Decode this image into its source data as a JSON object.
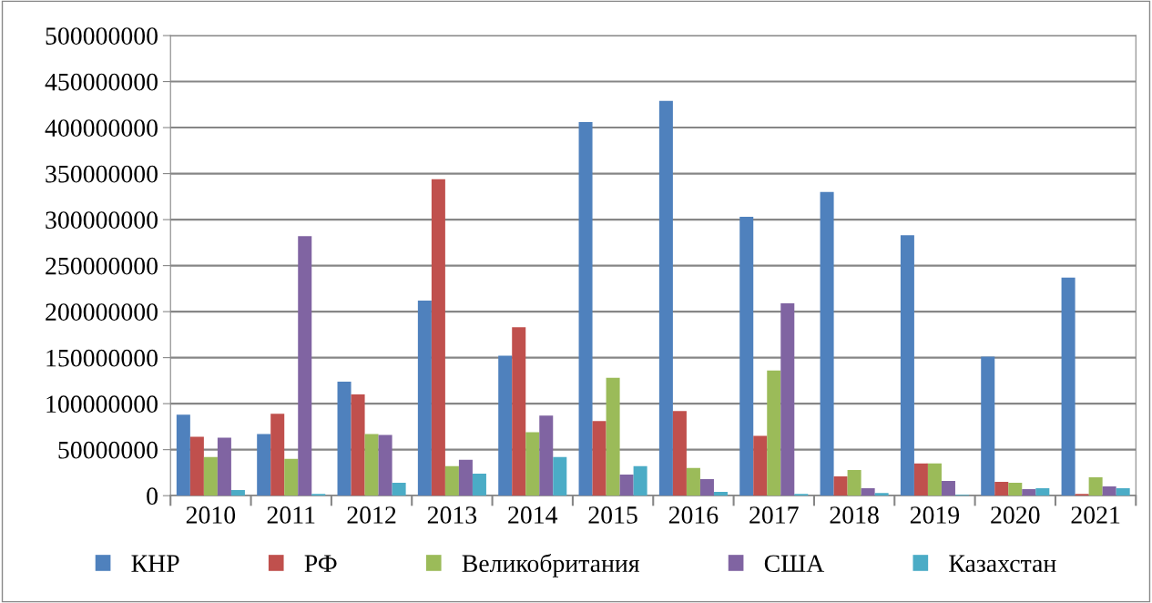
{
  "chart_data": {
    "type": "bar",
    "categories": [
      "2010",
      "2011",
      "2012",
      "2013",
      "2014",
      "2015",
      "2016",
      "2017",
      "2018",
      "2019",
      "2020",
      "2021"
    ],
    "series": [
      {
        "name": "КНР",
        "color": "#4f81bd",
        "values": [
          88000000,
          67000000,
          124000000,
          212000000,
          152000000,
          406000000,
          429000000,
          303000000,
          330000000,
          283000000,
          151000000,
          237000000
        ]
      },
      {
        "name": "РФ",
        "color": "#c0504d",
        "values": [
          64000000,
          89000000,
          110000000,
          344000000,
          183000000,
          81000000,
          92000000,
          65000000,
          21000000,
          35000000,
          15000000,
          2000000
        ]
      },
      {
        "name": "Великобритания",
        "color": "#9bbb59",
        "values": [
          42000000,
          40000000,
          67000000,
          32000000,
          69000000,
          128000000,
          30000000,
          136000000,
          28000000,
          35000000,
          14000000,
          20000000
        ]
      },
      {
        "name": "США",
        "color": "#8064a2",
        "values": [
          63000000,
          282000000,
          66000000,
          39000000,
          87000000,
          23000000,
          18000000,
          209000000,
          8000000,
          16000000,
          7000000,
          10000000
        ]
      },
      {
        "name": "Казахстан",
        "color": "#4bacc6",
        "values": [
          6000000,
          2000000,
          14000000,
          24000000,
          42000000,
          32000000,
          4000000,
          2000000,
          3000000,
          1000000,
          8000000,
          8000000
        ]
      }
    ],
    "ylim": [
      0,
      500000000
    ],
    "yticks": [
      0,
      50000000,
      100000000,
      150000000,
      200000000,
      250000000,
      300000000,
      350000000,
      400000000,
      450000000,
      500000000
    ],
    "grid": "y",
    "legend": "bottom"
  }
}
